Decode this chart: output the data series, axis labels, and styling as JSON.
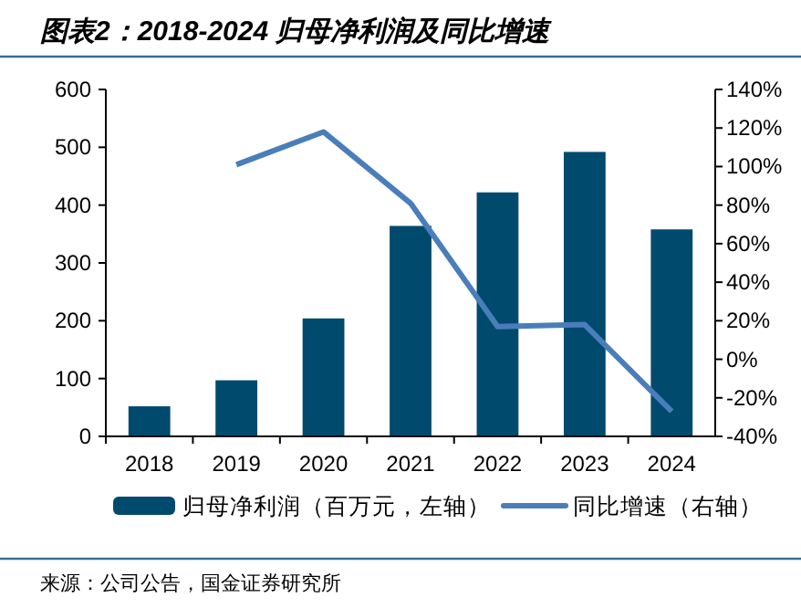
{
  "chart_data": {
    "type": "bar",
    "title": "图表2：2018-2024 归母净利润及同比增速",
    "categories": [
      "2018",
      "2019",
      "2020",
      "2021",
      "2022",
      "2023",
      "2024"
    ],
    "series": [
      {
        "name": "归母净利润（百万元，左轴）",
        "color": "#004a6e",
        "values": [
          52,
          97,
          204,
          364,
          422,
          492,
          358
        ]
      },
      {
        "name": "同比增速（右轴）",
        "type": "line",
        "axis": "y2",
        "color": "#4a7ebb",
        "values": [
          null,
          101,
          118,
          81,
          17,
          18,
          -27
        ]
      }
    ],
    "ylim": [
      0,
      600
    ],
    "yticks": [
      0,
      100,
      200,
      300,
      400,
      500,
      600
    ],
    "y2lim": [
      -40,
      140
    ],
    "y2ticks": [
      {
        "value": -40,
        "label": "-40%"
      },
      {
        "value": -20,
        "label": "-20%"
      },
      {
        "value": 0,
        "label": "0%"
      },
      {
        "value": 20,
        "label": "20%"
      },
      {
        "value": 40,
        "label": "40%"
      },
      {
        "value": 60,
        "label": "60%"
      },
      {
        "value": 80,
        "label": "80%"
      },
      {
        "value": 100,
        "label": "100%"
      },
      {
        "value": 120,
        "label": "120%"
      },
      {
        "value": 140,
        "label": "140%"
      }
    ],
    "grid": false,
    "legend": "bottom",
    "marker": "none",
    "line_style": "solid",
    "annotations": [
      "来源：公司公告，国金证券研究所"
    ]
  }
}
